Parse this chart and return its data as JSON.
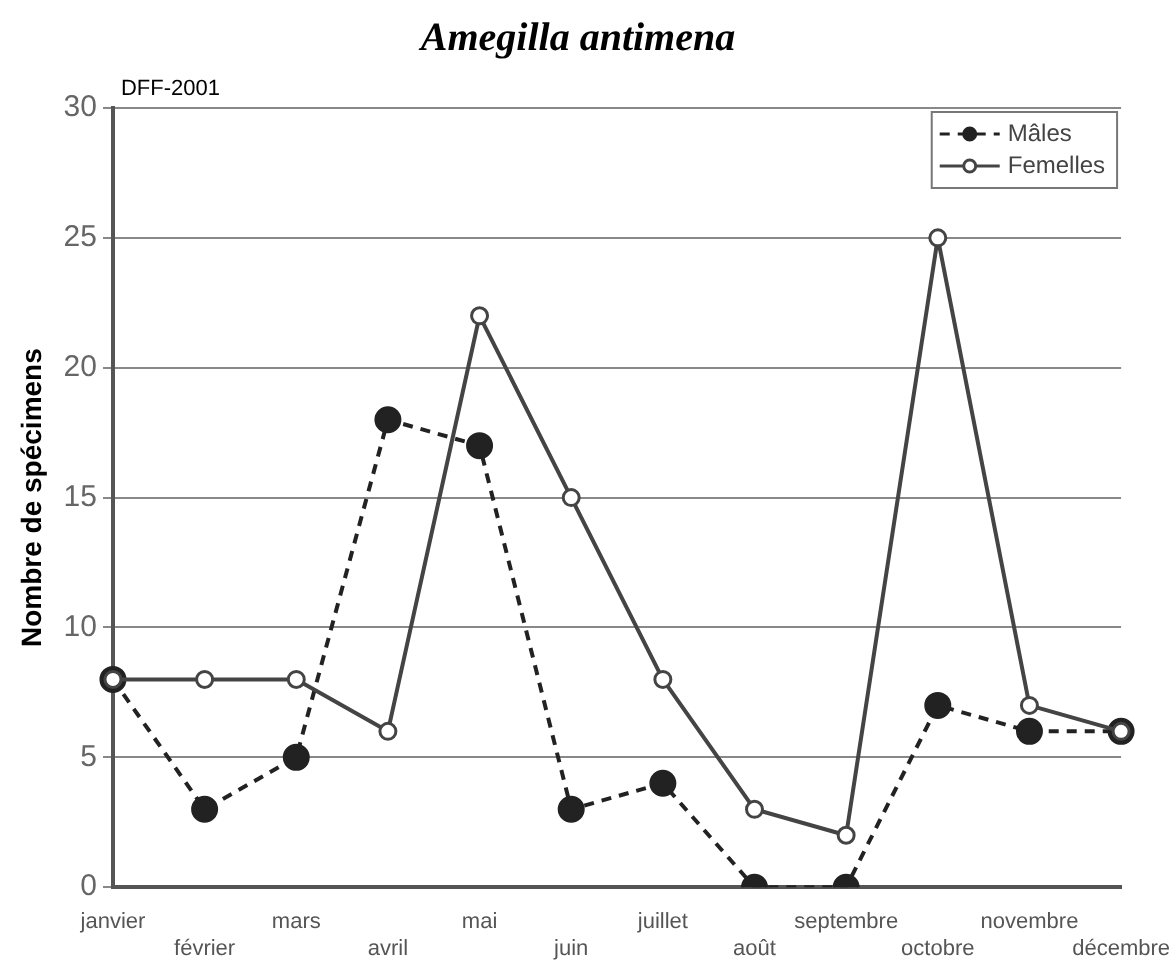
{
  "chart_data": {
    "type": "line",
    "title": "Amegilla antimena",
    "ylabel": "Nombre de spécimens",
    "annotations": [
      "DFF-2001"
    ],
    "categories": [
      "janvier",
      "février",
      "mars",
      "avril",
      "mai",
      "juin",
      "juillet",
      "août",
      "septembre",
      "octobre",
      "novembre",
      "décembre"
    ],
    "series": [
      {
        "name": "Mâles",
        "color": "#222222",
        "marker": "circle",
        "line_style": "dashed",
        "values": [
          8,
          3,
          5,
          18,
          17,
          3,
          4,
          0,
          0,
          7,
          6,
          6
        ]
      },
      {
        "name": "Femelles",
        "color": "#444444",
        "marker": "circle",
        "line_style": "solid",
        "values": [
          8,
          8,
          8,
          6,
          22,
          15,
          8,
          3,
          2,
          25,
          7,
          6
        ]
      }
    ],
    "ylim": [
      0,
      30
    ],
    "yticks": [
      0,
      5,
      10,
      15,
      20,
      25,
      30
    ],
    "grid": "y",
    "legend": "top right"
  }
}
